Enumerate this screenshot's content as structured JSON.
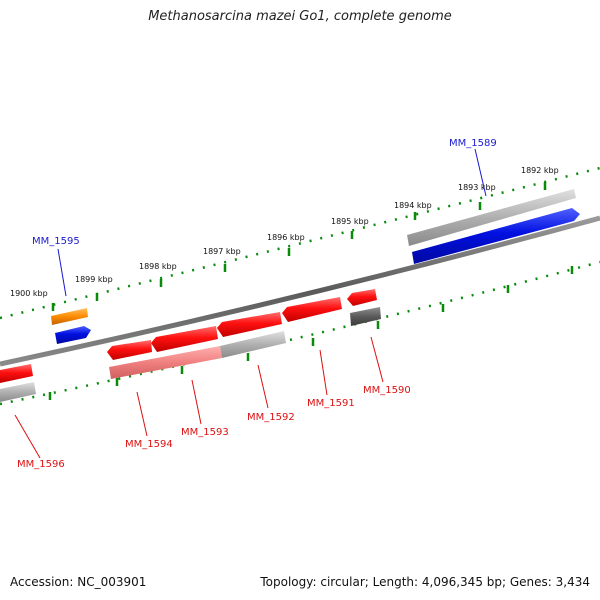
{
  "title": "Methanosarcina mazei Go1, complete genome",
  "footer": {
    "accession": "Accession: NC_003901",
    "summary": "Topology: circular; Length: 4,096,345 bp; Genes: 3,434"
  },
  "colors": {
    "backbone": "#777777",
    "forward_gene_label": "#1a1ad0",
    "reverse_gene_label": "#dd1111",
    "forward_gene": "#0a10e0",
    "reverse_gene": "#ff1010",
    "orange_gene": "#ff8c00",
    "gray_gene": "#b0b0b0",
    "tick": "#0a8a0a"
  },
  "scale": {
    "labels": [
      "1900 kbp",
      "1899 kbp",
      "1898 kbp",
      "1897 kbp",
      "1896 kbp",
      "1895 kbp",
      "1894 kbp",
      "1893 kbp",
      "1892 kbp"
    ]
  },
  "genes": [
    {
      "label": "MM_1589",
      "strand": "forward"
    },
    {
      "label": "MM_1595",
      "strand": "forward"
    },
    {
      "label": "MM_1590",
      "strand": "reverse"
    },
    {
      "label": "MM_1591",
      "strand": "reverse"
    },
    {
      "label": "MM_1592",
      "strand": "reverse"
    },
    {
      "label": "MM_1593",
      "strand": "reverse"
    },
    {
      "label": "MM_1594",
      "strand": "reverse"
    },
    {
      "label": "MM_1596",
      "strand": "reverse"
    }
  ]
}
